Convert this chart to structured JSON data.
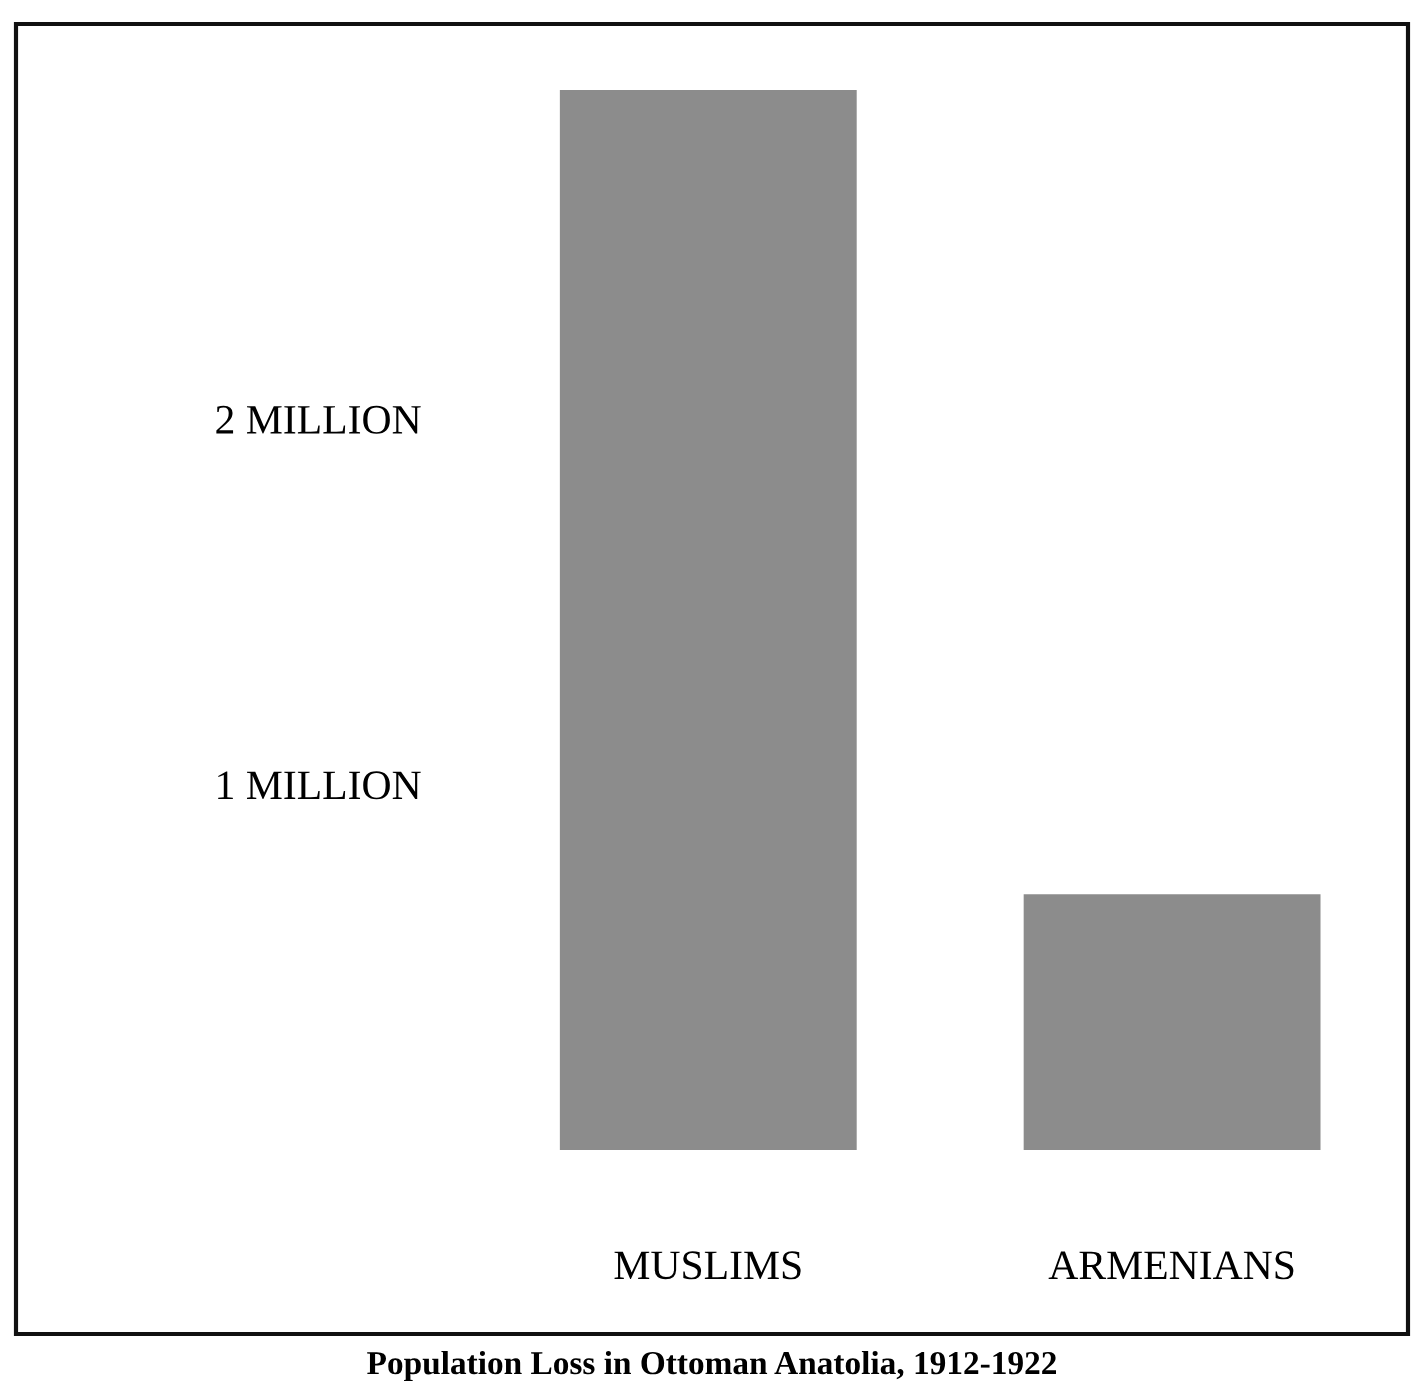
{
  "chart_data": {
    "type": "bar",
    "title": "Population Loss in Ottoman Anatolia, 1912-1922",
    "categories": [
      "MUSLIMS",
      "ARMENIANS"
    ],
    "values": [
      2.9,
      0.7
    ],
    "color": "#8c8c8c",
    "ylim": [
      0,
      2.9
    ],
    "yticks": [
      {
        "value": 1,
        "label": "1 MILLION"
      },
      {
        "value": 2,
        "label": "2 MILLION"
      }
    ],
    "grid": false
  }
}
